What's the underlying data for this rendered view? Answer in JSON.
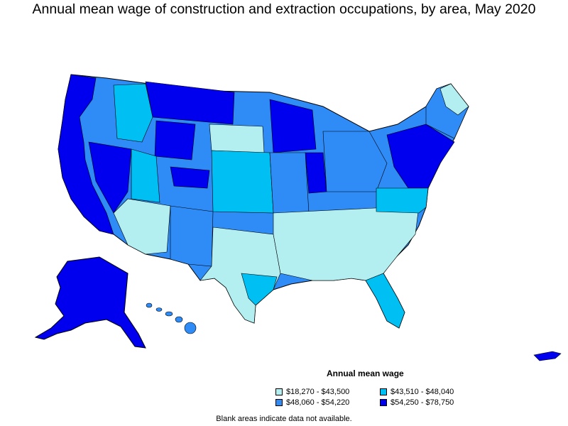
{
  "title": "Annual mean wage of construction and extraction occupations, by area, May 2020",
  "legend": {
    "title": "Annual mean wage",
    "items": [
      {
        "label": "$18,270 - $43,500",
        "color": "#b3eef0"
      },
      {
        "label": "$43,510 - $48,040",
        "color": "#00bff2"
      },
      {
        "label": "$48,060 - $54,220",
        "color": "#2f8cf7"
      },
      {
        "label": "$54,250 - $78,750",
        "color": "#0000ee"
      }
    ]
  },
  "footnote": "Blank areas indicate data not available.",
  "colors": {
    "lowest": "#b3eef0",
    "low": "#00bff2",
    "high": "#2f8cf7",
    "highest": "#0000ee",
    "border": "#000000"
  }
}
